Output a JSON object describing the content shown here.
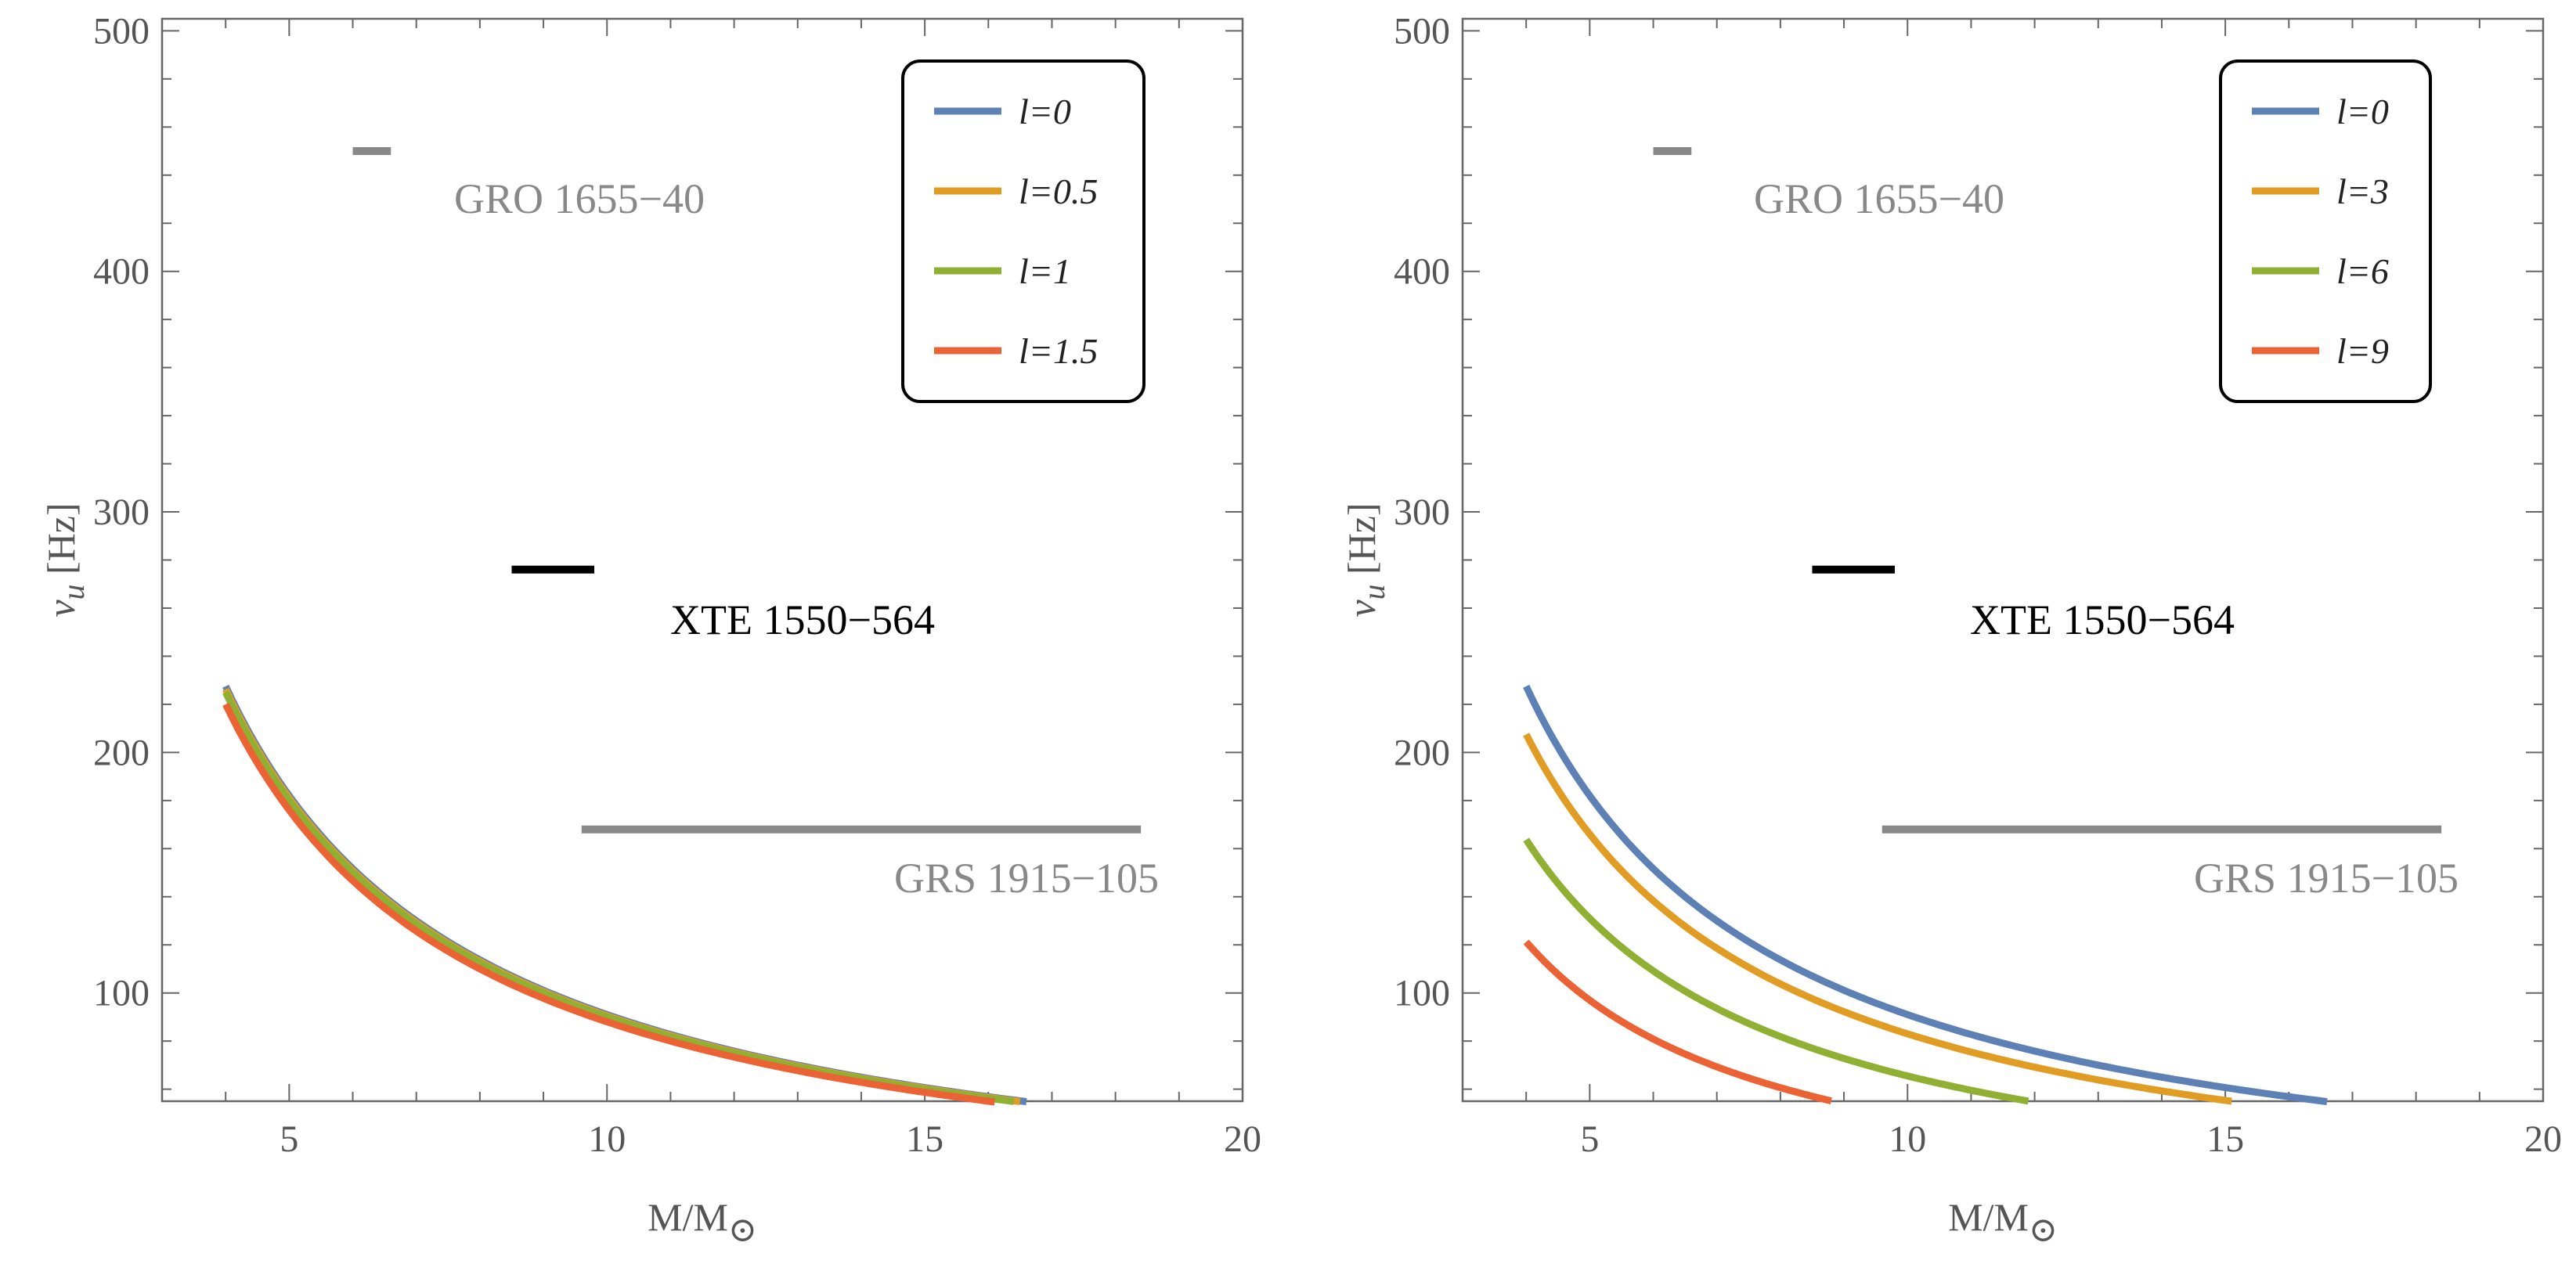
{
  "chart_data": [
    {
      "type": "line",
      "xlabel": "M/M",
      "xlabel_subscript": "⊙",
      "ylabel": "ν",
      "ylabel_subscript": "u",
      "ylabel_unit": " [Hz]",
      "xlim": [
        3,
        20
      ],
      "ylim": [
        55,
        505
      ],
      "xticks": [
        5,
        10,
        15,
        20
      ],
      "yticks": [
        100,
        200,
        300,
        400,
        500
      ],
      "legend_position": "top-right",
      "series": [
        {
          "name": "l=0",
          "color": "#5e81b5",
          "k": 910,
          "x_start": 4.0,
          "x_end": 16.6
        },
        {
          "name": "l=0.5",
          "color": "#e19c24",
          "k": 905,
          "x_start": 4.0,
          "x_end": 16.5
        },
        {
          "name": "l=1",
          "color": "#8fb032",
          "k": 900,
          "x_start": 4.0,
          "x_end": 16.4
        },
        {
          "name": "l=1.5",
          "color": "#eb6235",
          "k": 880,
          "x_start": 4.0,
          "x_end": 16.1
        }
      ],
      "observations": [
        {
          "name": "GRO 1655-40",
          "x_range": [
            6.0,
            6.6
          ],
          "y": 450,
          "color": "#888888"
        },
        {
          "name": "XTE 1550-564",
          "x_range": [
            8.5,
            9.8
          ],
          "y": 276,
          "color": "#000000"
        },
        {
          "name": "GRS 1915-105",
          "x_range": [
            9.6,
            18.4
          ],
          "y": 168,
          "color": "#888888"
        }
      ]
    },
    {
      "type": "line",
      "xlabel": "M/M",
      "xlabel_subscript": "⊙",
      "ylabel": "ν",
      "ylabel_subscript": "u",
      "ylabel_unit": " [Hz]",
      "xlim": [
        3,
        20
      ],
      "ylim": [
        55,
        505
      ],
      "xticks": [
        5,
        10,
        15,
        20
      ],
      "yticks": [
        100,
        200,
        300,
        400,
        500
      ],
      "legend_position": "top-right",
      "series": [
        {
          "name": "l=0",
          "color": "#5e81b5",
          "k": 910,
          "x_start": 4.0,
          "x_end": 16.6
        },
        {
          "name": "l=3",
          "color": "#e19c24",
          "k": 830,
          "x_start": 4.0,
          "x_end": 15.1
        },
        {
          "name": "l=6",
          "color": "#8fb032",
          "k": 655,
          "x_start": 4.0,
          "x_end": 11.9
        },
        {
          "name": "l=9",
          "color": "#eb6235",
          "k": 485,
          "x_start": 4.0,
          "x_end": 8.8
        }
      ],
      "observations": [
        {
          "name": "GRO 1655-40",
          "x_range": [
            6.0,
            6.6
          ],
          "y": 450,
          "color": "#888888"
        },
        {
          "name": "XTE 1550-564",
          "x_range": [
            8.5,
            9.8
          ],
          "y": 276,
          "color": "#000000"
        },
        {
          "name": "GRS 1915-105",
          "x_range": [
            9.6,
            18.4
          ],
          "y": 168,
          "color": "#888888"
        }
      ]
    }
  ]
}
